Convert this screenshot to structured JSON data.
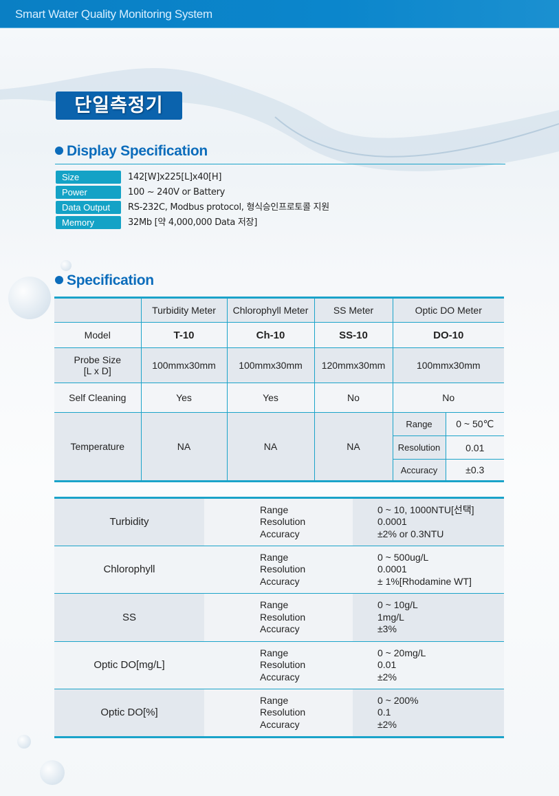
{
  "header": {
    "title": "Smart Water Quality Monitoring System"
  },
  "badge": {
    "title": "단일측정기"
  },
  "display_spec": {
    "heading": "Display Specification",
    "rows": [
      {
        "label": "Size",
        "value": "142[W]x225[L]x40[H]"
      },
      {
        "label": "Power",
        "value": "100 ~ 240V or Battery"
      },
      {
        "label": "Data Output",
        "value": "RS-232C, Modbus protocol, 형식승인프로토콜 지원"
      },
      {
        "label": "Memory",
        "value": "32Mb [약 4,000,000 Data 저장]"
      }
    ]
  },
  "spec": {
    "heading": "Specification",
    "columns": [
      "Turbidity Meter",
      "Chlorophyll Meter",
      "SS Meter",
      "Optic DO Meter"
    ],
    "model": {
      "label": "Model",
      "values": [
        "T-10",
        "Ch-10",
        "SS-10",
        "DO-10"
      ]
    },
    "probe": {
      "label": "Probe Size",
      "label2": "[L x D]",
      "values": [
        "100mmx30mm",
        "100mmx30mm",
        "120mmx30mm",
        "100mmx30mm"
      ]
    },
    "cleaning": {
      "label": "Self Cleaning",
      "values": [
        "Yes",
        "Yes",
        "No",
        "No"
      ]
    },
    "temperature": {
      "label": "Temperature",
      "values": [
        "NA",
        "NA",
        "NA"
      ],
      "do_sub": [
        {
          "k": "Range",
          "v": "0 ~ 50℃"
        },
        {
          "k": "Resolution",
          "v": "0.01"
        },
        {
          "k": "Accuracy",
          "v": "±0.3"
        }
      ]
    }
  },
  "sensors": [
    {
      "name": "Turbidity",
      "keys": [
        "Range",
        "Resolution",
        "Accuracy"
      ],
      "values": [
        "0 ~ 10, 1000NTU[선택]",
        "0.0001",
        "±2% or 0.3NTU"
      ]
    },
    {
      "name": "Chlorophyll",
      "keys": [
        "Range",
        "Resolution",
        "Accuracy"
      ],
      "values": [
        "0 ~ 500ug/L",
        "0.0001",
        "± 1%[Rhodamine WT]"
      ]
    },
    {
      "name": "SS",
      "keys": [
        "Range",
        "Resolution",
        "Accuracy"
      ],
      "values": [
        "0 ~ 10g/L",
        "1mg/L",
        "±3%"
      ]
    },
    {
      "name": "Optic DO[mg/L]",
      "keys": [
        "Range",
        "Resolution",
        "Accuracy"
      ],
      "values": [
        "0 ~ 20mg/L",
        "0.01",
        "±2%"
      ]
    },
    {
      "name": "Optic DO[%]",
      "keys": [
        "Range",
        "Resolution",
        "Accuracy"
      ],
      "values": [
        "0 ~ 200%",
        "0.1",
        "±2%"
      ]
    }
  ],
  "colors": {
    "header": "#0a7fc4",
    "badge": "#0b63ad",
    "label": "#14a2c6",
    "heading": "#0b6cbb",
    "rule": "#1aa3c9"
  }
}
